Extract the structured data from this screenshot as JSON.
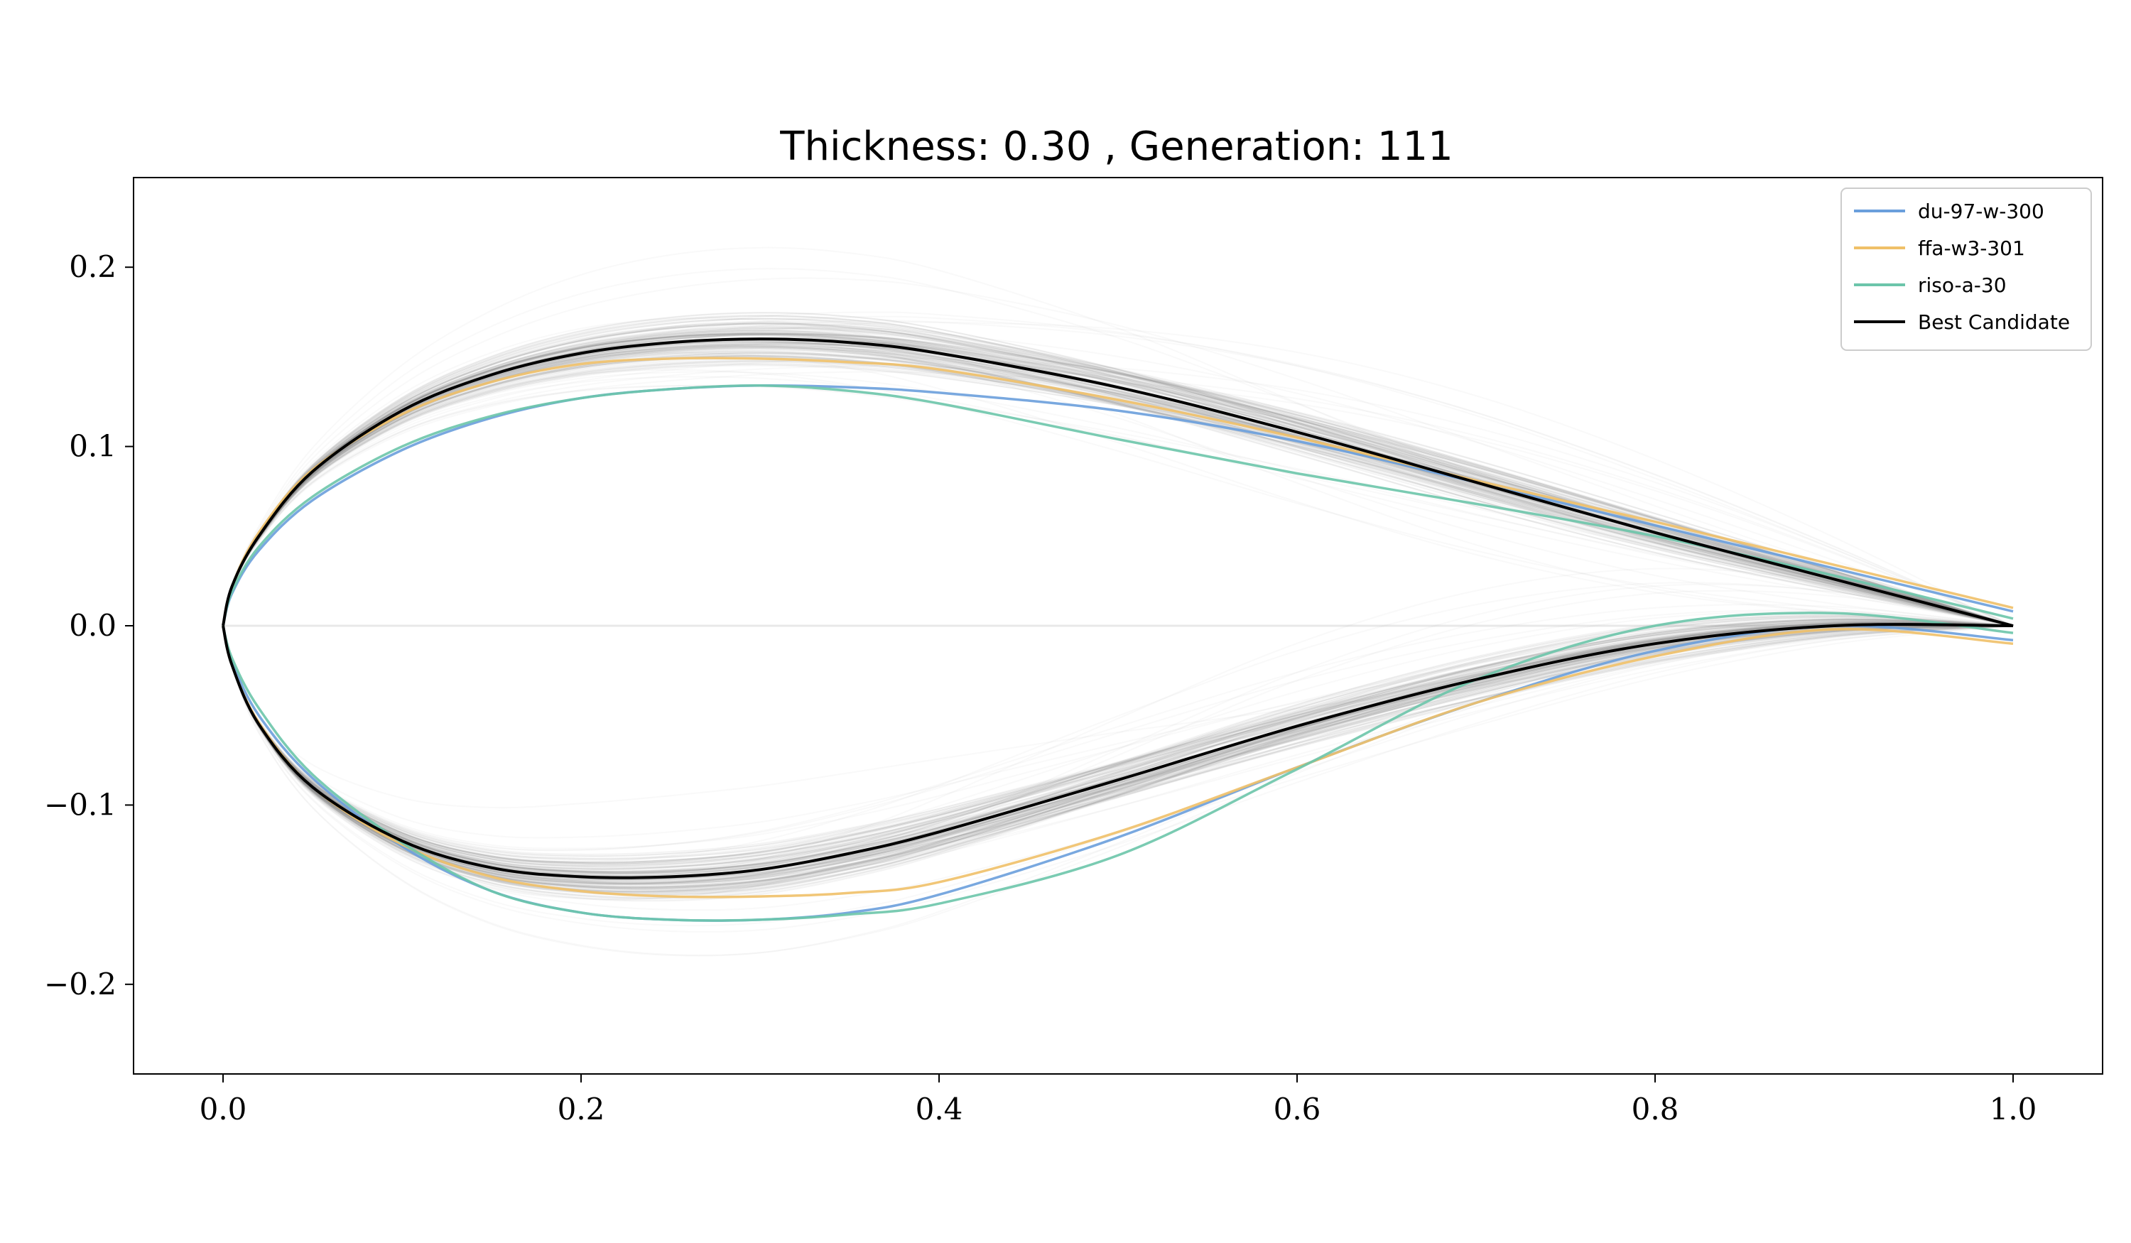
{
  "chart_data": {
    "type": "line",
    "title": "Thickness: 0.30 , Generation: 111",
    "xlabel": "",
    "ylabel": "",
    "xlim": [
      -0.05,
      1.05
    ],
    "ylim": [
      -0.25,
      0.25
    ],
    "xticks": [
      0.0,
      0.2,
      0.4,
      0.6,
      0.8,
      1.0
    ],
    "xtick_labels": [
      "0.0",
      "0.2",
      "0.4",
      "0.6",
      "0.8",
      "1.0"
    ],
    "yticks": [
      0.2,
      0.1,
      0.0,
      -0.1,
      -0.2
    ],
    "ytick_labels": [
      "0.2",
      "0.1",
      "0.0",
      "−0.1",
      "−0.2"
    ],
    "grid": false,
    "legend_position": "top-right",
    "population_color": "#8a8a8a",
    "series": [
      {
        "name": "du-97-w-300",
        "color": "#6a9fdc",
        "upper": {
          "x": [
            0,
            0.005,
            0.02,
            0.05,
            0.1,
            0.15,
            0.2,
            0.25,
            0.3,
            0.35,
            0.4,
            0.5,
            0.6,
            0.7,
            0.8,
            0.9,
            1.0
          ],
          "y": [
            0,
            0.018,
            0.042,
            0.07,
            0.098,
            0.116,
            0.127,
            0.132,
            0.134,
            0.133,
            0.13,
            0.12,
            0.103,
            0.08,
            0.056,
            0.032,
            0.008
          ]
        },
        "lower": {
          "x": [
            0,
            0.005,
            0.02,
            0.05,
            0.1,
            0.15,
            0.2,
            0.25,
            0.3,
            0.35,
            0.4,
            0.5,
            0.6,
            0.7,
            0.8,
            0.9,
            1.0
          ],
          "y": [
            0,
            -0.02,
            -0.05,
            -0.085,
            -0.123,
            -0.148,
            -0.16,
            -0.164,
            -0.164,
            -0.16,
            -0.15,
            -0.118,
            -0.079,
            -0.043,
            -0.014,
            0.0,
            -0.008
          ]
        }
      },
      {
        "name": "ffa-w3-301",
        "color": "#f0c068",
        "upper": {
          "x": [
            0,
            0.005,
            0.02,
            0.05,
            0.1,
            0.15,
            0.2,
            0.25,
            0.3,
            0.35,
            0.4,
            0.5,
            0.6,
            0.7,
            0.8,
            0.9,
            1.0
          ],
          "y": [
            0,
            0.022,
            0.052,
            0.087,
            0.118,
            0.136,
            0.146,
            0.149,
            0.149,
            0.147,
            0.143,
            0.126,
            0.105,
            0.081,
            0.058,
            0.034,
            0.01
          ]
        },
        "lower": {
          "x": [
            0,
            0.005,
            0.02,
            0.05,
            0.1,
            0.15,
            0.2,
            0.25,
            0.3,
            0.35,
            0.4,
            0.5,
            0.6,
            0.7,
            0.8,
            0.9,
            1.0
          ],
          "y": [
            0,
            -0.022,
            -0.054,
            -0.09,
            -0.122,
            -0.14,
            -0.148,
            -0.151,
            -0.151,
            -0.149,
            -0.143,
            -0.115,
            -0.079,
            -0.043,
            -0.017,
            -0.002,
            -0.01
          ]
        }
      },
      {
        "name": "riso-a-30",
        "color": "#6cc5aa",
        "upper": {
          "x": [
            0,
            0.005,
            0.02,
            0.05,
            0.1,
            0.15,
            0.2,
            0.25,
            0.3,
            0.35,
            0.4,
            0.5,
            0.6,
            0.7,
            0.8,
            0.9,
            1.0
          ],
          "y": [
            0,
            0.019,
            0.044,
            0.072,
            0.1,
            0.117,
            0.127,
            0.132,
            0.134,
            0.131,
            0.124,
            0.104,
            0.085,
            0.068,
            0.05,
            0.028,
            0.004
          ]
        },
        "lower": {
          "x": [
            0,
            0.005,
            0.02,
            0.05,
            0.1,
            0.15,
            0.2,
            0.25,
            0.3,
            0.35,
            0.4,
            0.5,
            0.6,
            0.7,
            0.8,
            0.9,
            1.0
          ],
          "y": [
            0,
            -0.018,
            -0.046,
            -0.083,
            -0.121,
            -0.148,
            -0.16,
            -0.164,
            -0.164,
            -0.161,
            -0.155,
            -0.128,
            -0.08,
            -0.03,
            0.0,
            0.007,
            -0.004
          ]
        }
      },
      {
        "name": "Best Candidate",
        "color": "#000000",
        "upper": {
          "x": [
            0,
            0.005,
            0.02,
            0.05,
            0.1,
            0.15,
            0.2,
            0.25,
            0.3,
            0.35,
            0.4,
            0.5,
            0.6,
            0.7,
            0.8,
            0.9,
            1.0
          ],
          "y": [
            0,
            0.022,
            0.05,
            0.086,
            0.12,
            0.14,
            0.152,
            0.158,
            0.16,
            0.158,
            0.152,
            0.133,
            0.108,
            0.08,
            0.052,
            0.026,
            0.0
          ]
        },
        "lower": {
          "x": [
            0,
            0.005,
            0.02,
            0.05,
            0.1,
            0.15,
            0.2,
            0.25,
            0.3,
            0.35,
            0.4,
            0.5,
            0.6,
            0.7,
            0.8,
            0.9,
            1.0
          ],
          "y": [
            0,
            -0.022,
            -0.055,
            -0.09,
            -0.12,
            -0.135,
            -0.14,
            -0.14,
            -0.136,
            -0.127,
            -0.115,
            -0.086,
            -0.056,
            -0.03,
            -0.01,
            0.0,
            0.0
          ]
        }
      }
    ]
  }
}
